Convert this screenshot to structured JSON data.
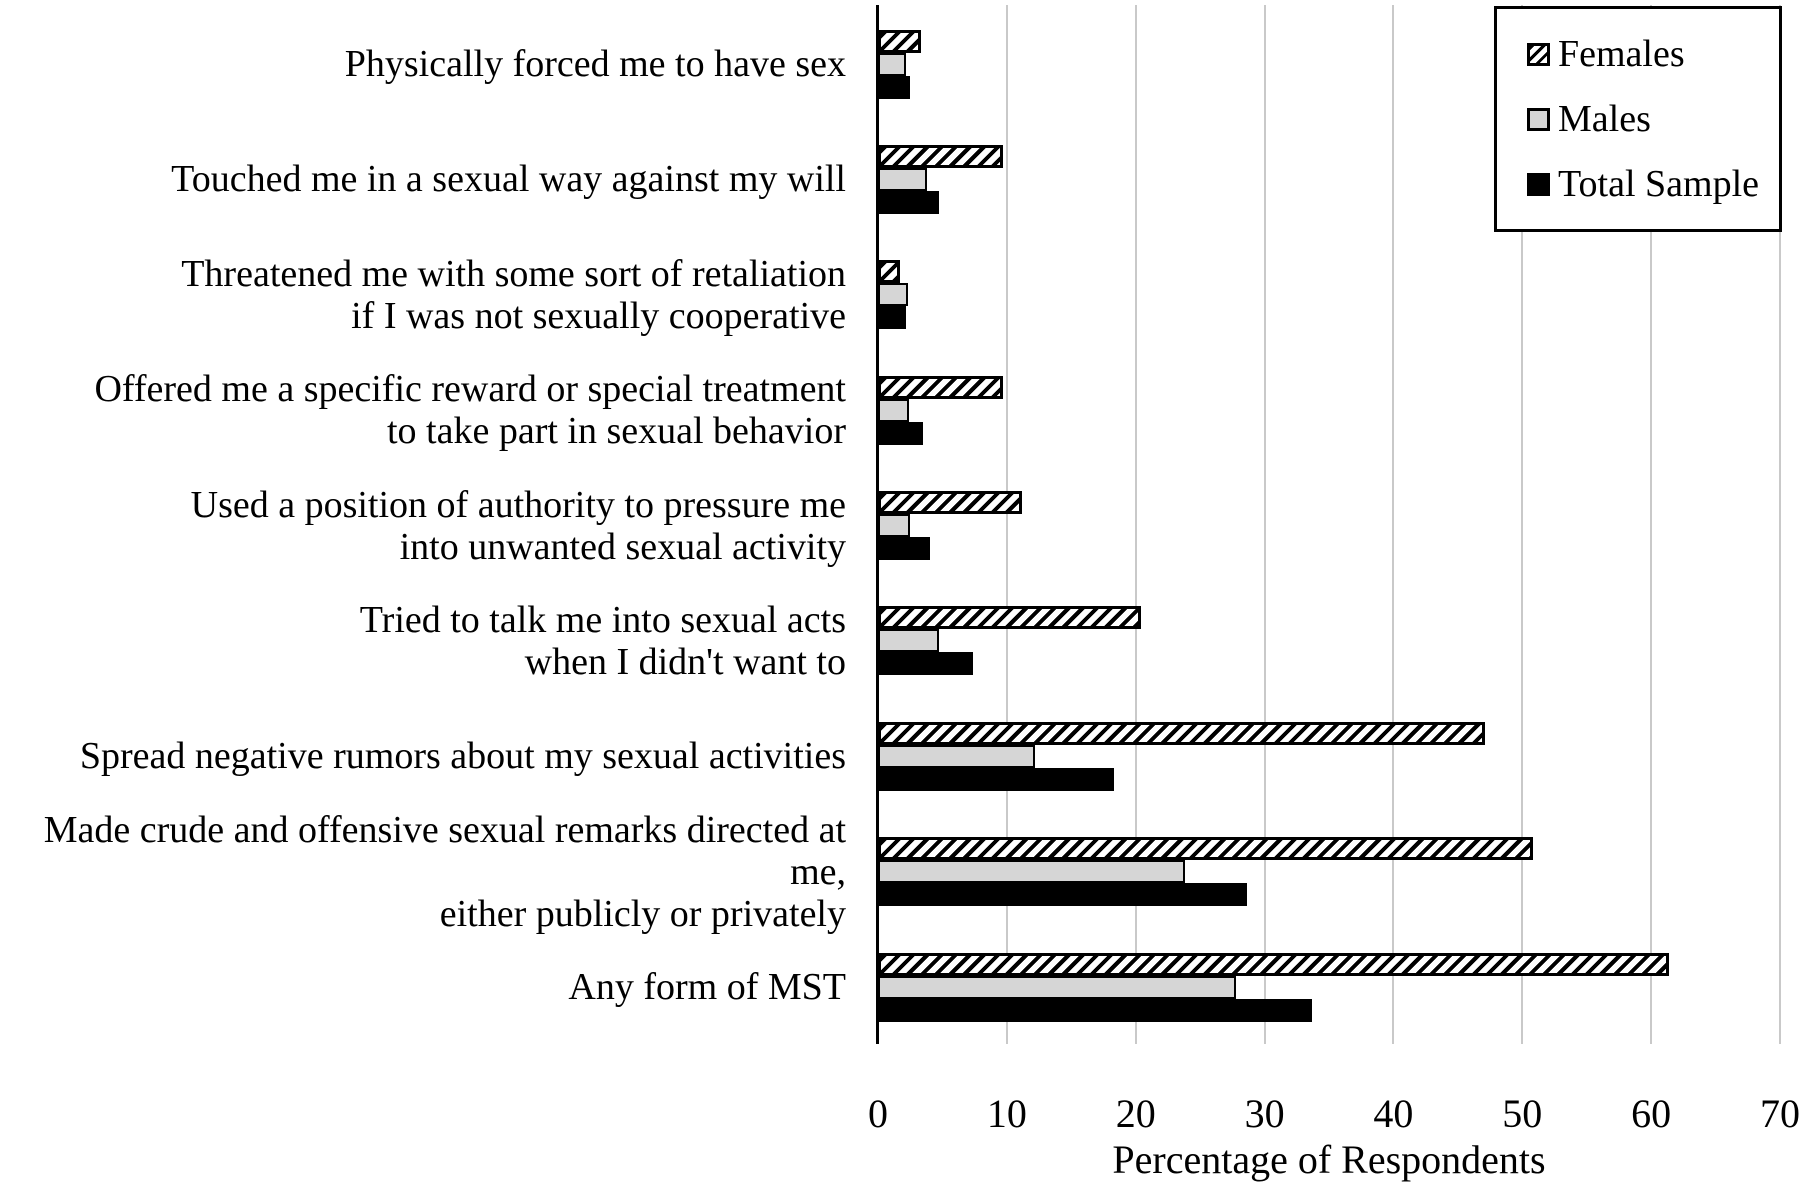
{
  "chart_data": {
    "type": "bar",
    "orientation": "horizontal",
    "title": "",
    "xlabel": "Percentage of Respondents",
    "ylabel": "",
    "xlim": [
      0,
      70
    ],
    "xticks": [
      0,
      10,
      20,
      30,
      40,
      50,
      60,
      70
    ],
    "grid": "vertical-gridlines-on",
    "legend_position": "top-right",
    "categories": [
      [
        "Physically forced me to have sex"
      ],
      [
        "Touched me in a sexual way against my will"
      ],
      [
        "Threatened me with some sort of retaliation",
        "if I was not sexually cooperative"
      ],
      [
        "Offered me a specific reward or special treatment",
        "to take part in sexual behavior"
      ],
      [
        "Used a position of authority to pressure me",
        "into unwanted sexual activity"
      ],
      [
        "Tried to talk me into sexual acts",
        "when I didn't want to"
      ],
      [
        "Spread negative rumors about my sexual activities"
      ],
      [
        "Made crude and offensive sexual remarks directed at me,",
        "either publicly or privately"
      ],
      [
        "Any form of MST"
      ]
    ],
    "series": [
      {
        "name": "Females",
        "style": "black-diagonal-hatch-on-white",
        "values": [
          3.3,
          9.7,
          1.7,
          9.7,
          11.2,
          20.4,
          47.1,
          50.8,
          61.4
        ]
      },
      {
        "name": "Males",
        "style": "solid",
        "color": "#d6d6d6",
        "values": [
          2.2,
          3.8,
          2.3,
          2.4,
          2.5,
          4.7,
          12.2,
          23.8,
          27.8
        ]
      },
      {
        "name": "Total Sample",
        "style": "solid",
        "color": "#000000",
        "values": [
          2.5,
          4.7,
          2.2,
          3.5,
          4.0,
          7.4,
          18.3,
          28.6,
          33.7
        ]
      }
    ],
    "colors": {
      "gridline": "#c9c9c9",
      "axis": "#000000",
      "bar_border": "#000000",
      "hatch_foreground": "#000000",
      "hatch_background": "#ffffff"
    }
  }
}
